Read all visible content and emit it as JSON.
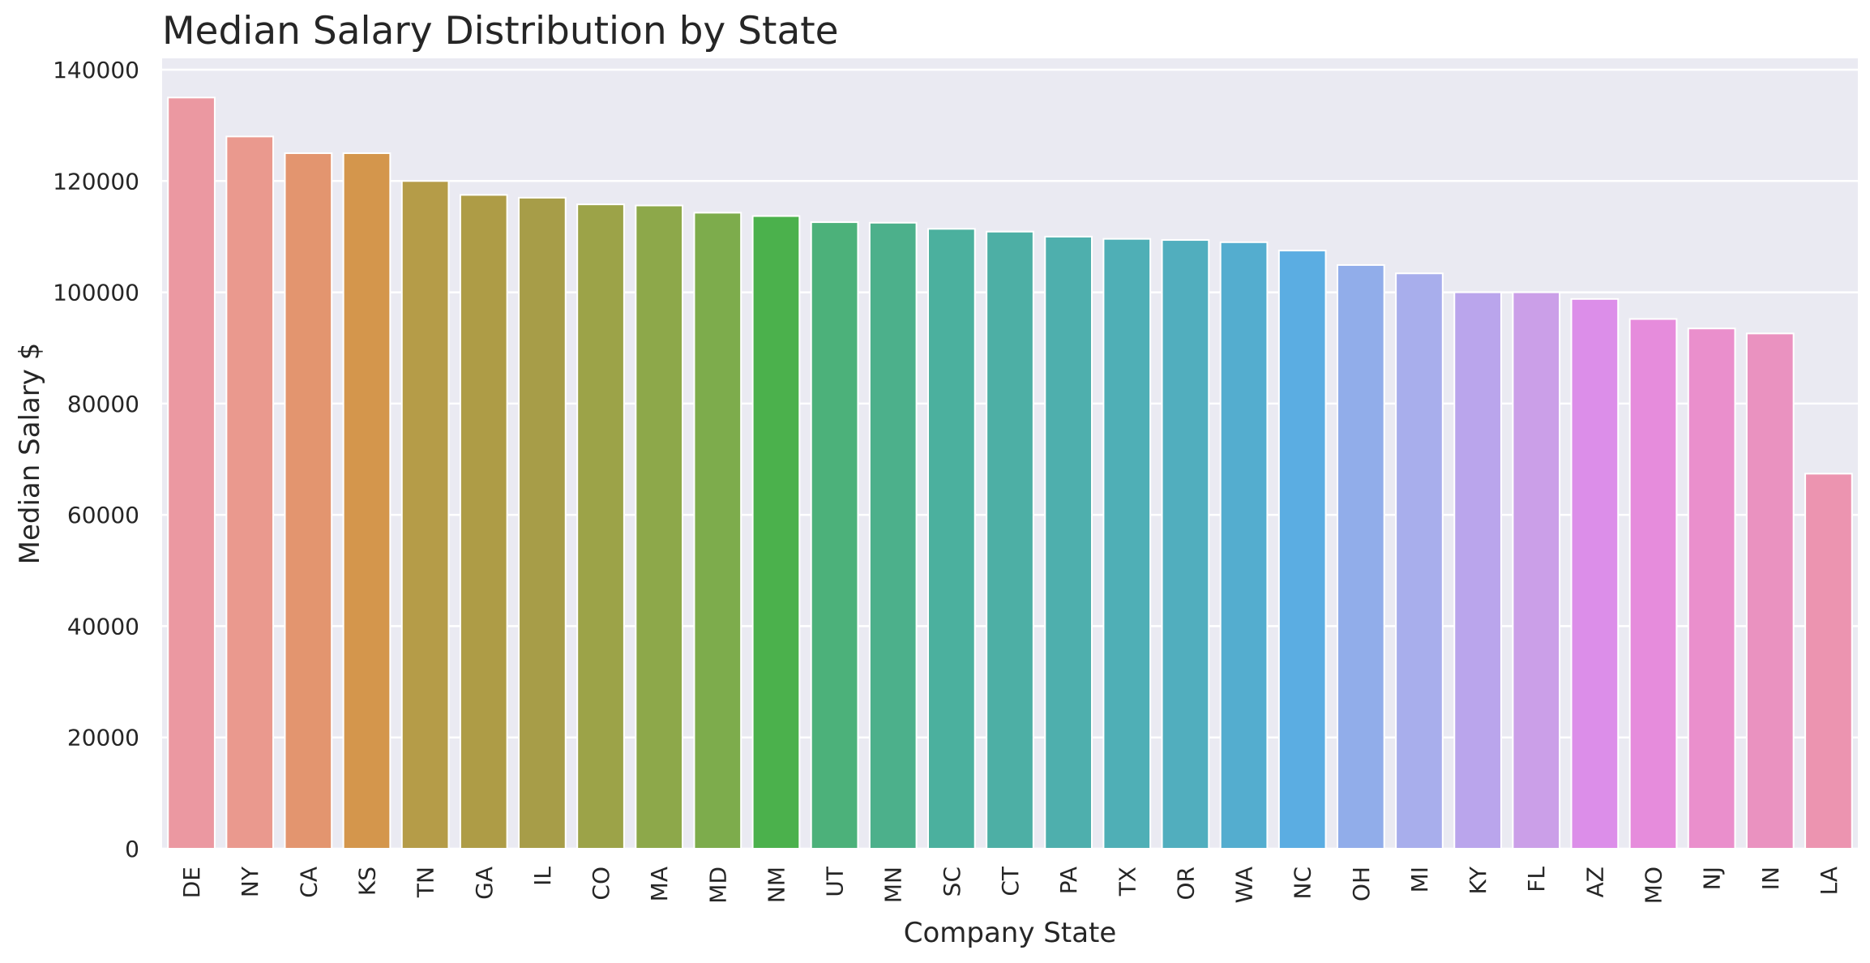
{
  "chart_data": {
    "type": "bar",
    "title": "Median Salary Distribution by State",
    "xlabel": "Company State",
    "ylabel": "Median Salary $",
    "ylim": [
      0,
      140000
    ],
    "yticks": [
      0,
      20000,
      40000,
      60000,
      80000,
      100000,
      120000,
      140000
    ],
    "grid": true,
    "categories": [
      "DE",
      "NY",
      "CA",
      "KS",
      "TN",
      "GA",
      "IL",
      "CO",
      "MA",
      "MD",
      "NM",
      "UT",
      "MN",
      "SC",
      "CT",
      "PA",
      "TX",
      "OR",
      "WA",
      "NC",
      "OH",
      "MI",
      "KY",
      "FL",
      "AZ",
      "MO",
      "NJ",
      "IN",
      "LA"
    ],
    "values": [
      135000,
      128000,
      125000,
      125000,
      120000,
      117500,
      117000,
      115800,
      115600,
      114300,
      113700,
      112600,
      112500,
      111400,
      110900,
      110000,
      109600,
      109400,
      109000,
      107500,
      104900,
      103400,
      100000,
      100000,
      98800,
      95200,
      93500,
      92600,
      67400
    ],
    "colors": [
      "#EB98A1",
      "#EA998E",
      "#E3956F",
      "#D4964C",
      "#B59C48",
      "#AE9C46",
      "#A79D48",
      "#9CA348",
      "#8DA84A",
      "#7DAC4C",
      "#4BB14C",
      "#4CB17A",
      "#4CB08B",
      "#4BB09E",
      "#4DAFA5",
      "#4EAFAD",
      "#4FAFB6",
      "#51AEBE",
      "#54ADCF",
      "#5BADE2",
      "#91ADEA",
      "#A8AEEC",
      "#BAA5EC",
      "#CB9FE8",
      "#DC8EE9",
      "#E68CDC",
      "#EA8FCC",
      "#EA92C0",
      "#EC94B0"
    ],
    "plot_background": "#EAEAF2"
  }
}
